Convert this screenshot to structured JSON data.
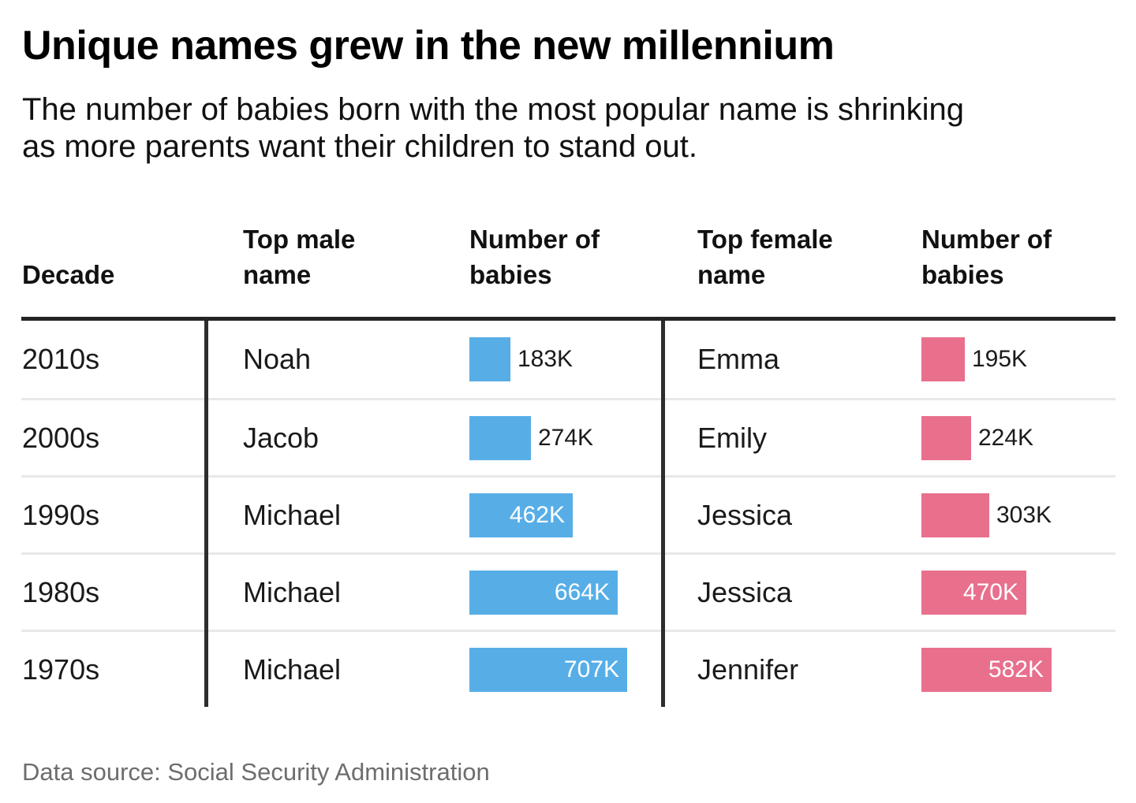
{
  "header": {
    "title": "Unique names grew in the new millennium",
    "subtitle": "The number of babies born with the most popular name is shrinking as more parents want their children to stand out."
  },
  "table": {
    "columns": [
      "Decade",
      "Top male name",
      "Number of babies",
      "Top female name",
      "Number of babies"
    ]
  },
  "chart_data": {
    "type": "table",
    "title": "Unique names grew in the new millennium",
    "subtitle": "The number of babies born with the most popular name is shrinking as more parents want their children to stand out.",
    "columns": [
      "Decade",
      "Top male name",
      "Number of babies",
      "Top female name",
      "Number of babies"
    ],
    "unit": "thousands of babies",
    "max_value_k": 707,
    "male_bar_color": "#57AEE7",
    "female_bar_color": "#E8708D",
    "rows": [
      {
        "decade": "2010s",
        "male_name": "Noah",
        "male_value_k": 183,
        "male_label": "183K",
        "female_name": "Emma",
        "female_value_k": 195,
        "female_label": "195K"
      },
      {
        "decade": "2000s",
        "male_name": "Jacob",
        "male_value_k": 274,
        "male_label": "274K",
        "female_name": "Emily",
        "female_value_k": 224,
        "female_label": "224K"
      },
      {
        "decade": "1990s",
        "male_name": "Michael",
        "male_value_k": 462,
        "male_label": "462K",
        "female_name": "Jessica",
        "female_value_k": 303,
        "female_label": "303K"
      },
      {
        "decade": "1980s",
        "male_name": "Michael",
        "male_value_k": 664,
        "male_label": "664K",
        "female_name": "Jessica",
        "female_value_k": 470,
        "female_label": "470K"
      },
      {
        "decade": "1970s",
        "male_name": "Michael",
        "male_value_k": 707,
        "male_label": "707K",
        "female_name": "Jennifer",
        "female_value_k": 582,
        "female_label": "582K"
      }
    ]
  },
  "footer": {
    "source": "Data source: Social Security Administration"
  }
}
